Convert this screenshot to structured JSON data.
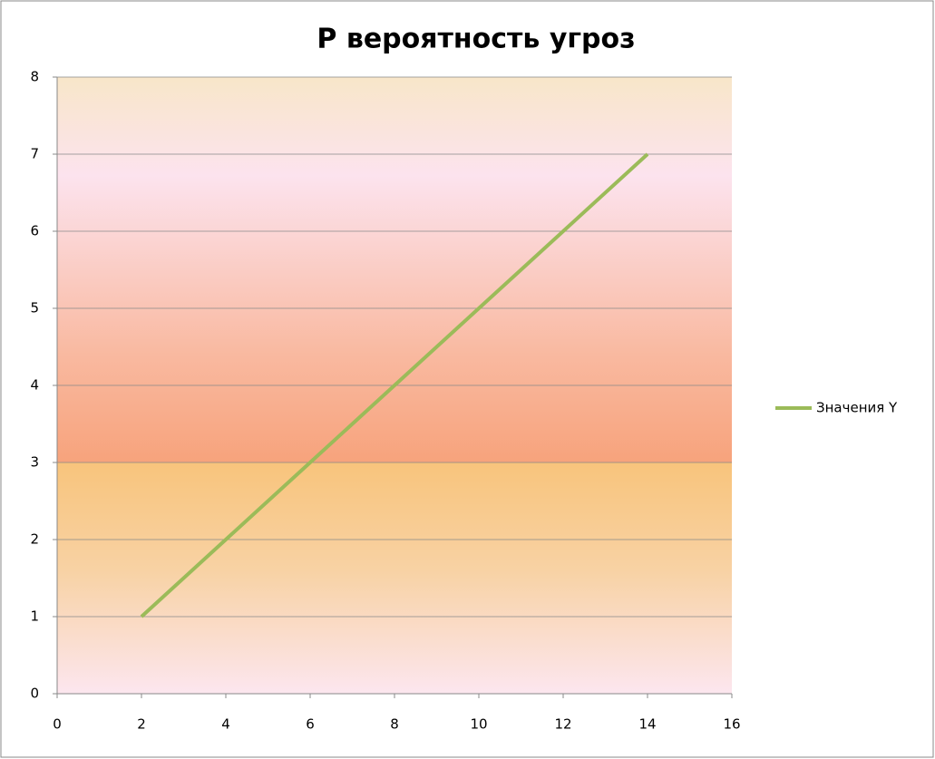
{
  "chart_data": {
    "type": "line",
    "title": "P вероятность угроз",
    "x": [
      2,
      4,
      6,
      8,
      10,
      12,
      14
    ],
    "series": [
      {
        "name": "Значения Y",
        "color": "#9bbb59",
        "values": [
          1,
          2,
          3,
          4,
          5,
          6,
          7
        ]
      }
    ],
    "xlim": [
      0,
      16
    ],
    "xticks": [
      0,
      2,
      4,
      6,
      8,
      10,
      12,
      14,
      16
    ],
    "ylim": [
      0,
      8
    ],
    "yticks": [
      0,
      1,
      2,
      3,
      4,
      5,
      6,
      7,
      8
    ],
    "grid": true,
    "legend": "right"
  }
}
